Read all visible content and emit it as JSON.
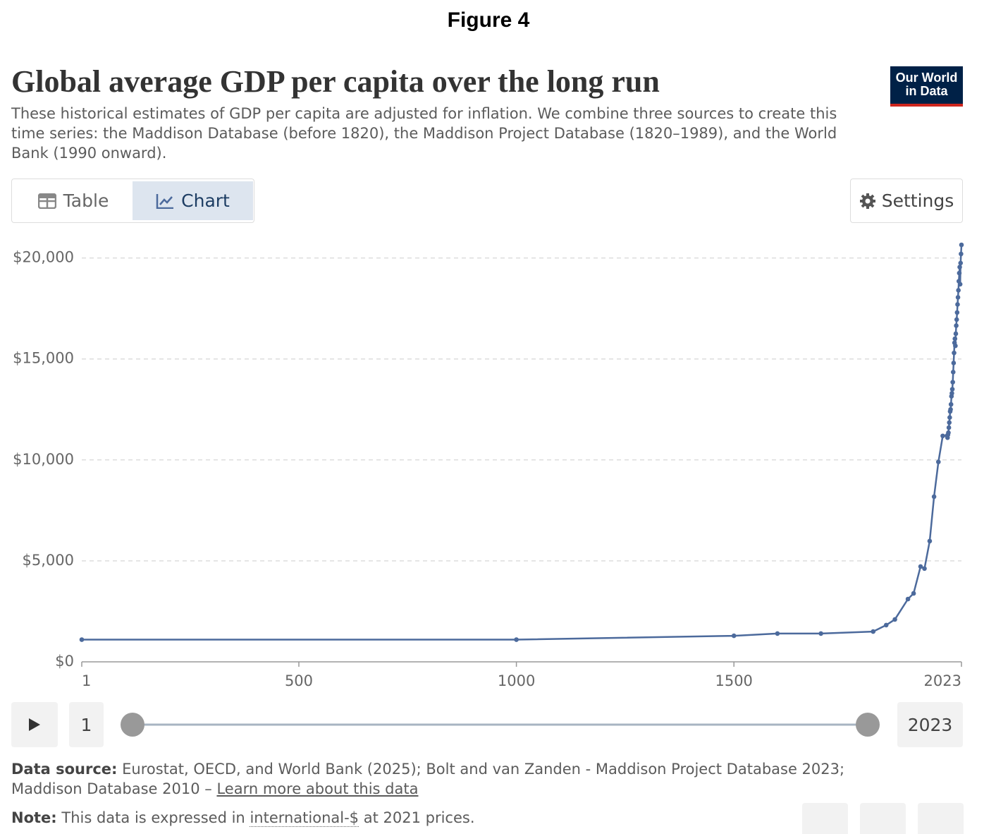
{
  "figure_label": "Figure 4",
  "header": {
    "title": "Global average GDP per capita over the long run",
    "subtitle": "These historical estimates of GDP per capita are adjusted for inflation. We combine three sources to create this time series: the Maddison Database (before 1820), the Maddison Project Database (1820–1989), and the World Bank (1990 onward).",
    "logo": [
      "Our World",
      "in Data"
    ]
  },
  "controls": {
    "tabs": [
      "Table",
      "Chart"
    ],
    "settings": "Settings"
  },
  "chart_data": {
    "type": "line",
    "color": "#4c6a9c",
    "grid": true,
    "markers": true,
    "x": [
      1,
      1000,
      1500,
      1600,
      1700,
      1820,
      1850,
      1870,
      1900,
      1913,
      1929,
      1938,
      1950,
      1960,
      1970,
      1980,
      1990,
      1991,
      1992,
      1993,
      1994,
      1995,
      1996,
      1997,
      1998,
      1999,
      2000,
      2001,
      2002,
      2003,
      2004,
      2005,
      2006,
      2007,
      2008,
      2009,
      2010,
      2011,
      2012,
      2013,
      2014,
      2015,
      2016,
      2017,
      2018,
      2019,
      2020,
      2021,
      2022,
      2023
    ],
    "values": [
      1100,
      1100,
      1290,
      1400,
      1400,
      1500,
      1820,
      2100,
      3110,
      3390,
      4720,
      4620,
      5980,
      8180,
      9900,
      11190,
      11200,
      11100,
      11250,
      11350,
      11600,
      11850,
      12100,
      12400,
      12500,
      12750,
      13150,
      13300,
      13500,
      13850,
      14350,
      14800,
      15300,
      15800,
      16000,
      15650,
      16250,
      16650,
      16950,
      17300,
      17700,
      18050,
      18400,
      18850,
      19250,
      19550,
      18700,
      19750,
      20200,
      20650
    ],
    "xlim": [
      1,
      2023
    ],
    "xticks": [
      1,
      500,
      1000,
      1500,
      2023
    ],
    "ylim": [
      0,
      21000
    ],
    "yticks": [
      {
        "value": 0,
        "label": "$0"
      },
      {
        "value": 5000,
        "label": "$5,000"
      },
      {
        "value": 10000,
        "label": "$10,000"
      },
      {
        "value": 15000,
        "label": "$15,000"
      },
      {
        "value": 20000,
        "label": "$20,000"
      }
    ]
  },
  "timeline": {
    "start": "1",
    "end": "2023"
  },
  "footer": {
    "source_label": "Data source:",
    "source": "Eurostat, OECD, and World Bank (2025); Bolt and van Zanden - Maddison Project Database 2023; Maddison Database 2010 –",
    "source_link": "Learn more about this data",
    "note_label": "Note:",
    "note_before": "This data is expressed in",
    "note_link": "international-$",
    "note_after": "at 2021 prices."
  }
}
